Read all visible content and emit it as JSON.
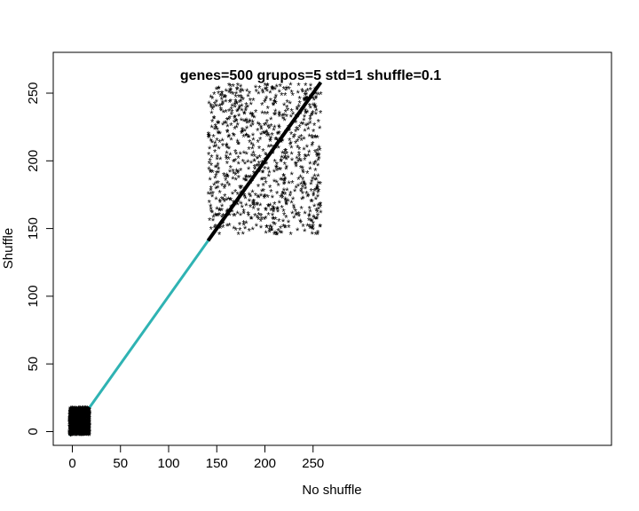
{
  "chart_data": {
    "type": "scatter",
    "title": "genes=500 grupos=5 std=1 shuffle=0.1",
    "xlabel": "No shuffle",
    "ylabel": "Shuffle",
    "xlim": [
      -8,
      280
    ],
    "ylim": [
      -12,
      278
    ],
    "xticks": [
      0,
      50,
      100,
      150,
      200,
      250
    ],
    "yticks": [
      0,
      50,
      100,
      150,
      200,
      250
    ],
    "marker": "*",
    "grid": false,
    "legend": "none",
    "clusters": [
      {
        "x_range": [
          -3,
          18
        ],
        "y_range": [
          -3,
          17
        ],
        "count": 1200
      },
      {
        "x_range": [
          141,
          258
        ],
        "y_range": [
          145,
          256
        ],
        "count": 900
      }
    ],
    "diagonal": {
      "x": [
        -3,
        258
      ],
      "y": [
        -3,
        258
      ]
    },
    "colors": {
      "points": "#000000",
      "accent": "#ff3b3b",
      "teal": "#2fb3b3"
    }
  }
}
